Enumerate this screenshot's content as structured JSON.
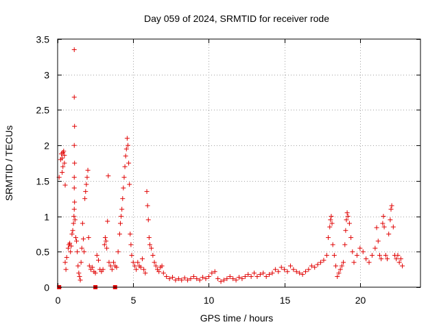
{
  "colors": {
    "points": "#e00000",
    "grid": "#a0a0a0",
    "frame": "#000000"
  },
  "chart_data": {
    "type": "scatter",
    "title": "Day 059 of 2024, SRMTID for receiver rode",
    "xlabel": "GPS time / hours",
    "ylabel": "SRMTID / TECUs",
    "xlim": [
      0,
      24
    ],
    "ylim": [
      0,
      3.5
    ],
    "xticks": [
      0,
      5,
      10,
      15,
      20
    ],
    "xtick_labels": [
      "0",
      "5",
      "10",
      "15",
      "20"
    ],
    "yticks": [
      0,
      0.5,
      1,
      1.5,
      2,
      2.5,
      3,
      3.5
    ],
    "ytick_labels": [
      "0",
      "0.5",
      "1",
      "1.5",
      "2",
      "2.5",
      "3",
      "3.5"
    ],
    "grid": true,
    "marker": "plus",
    "series": [
      {
        "name": "SRMTID",
        "points": [
          [
            0.1,
            1.55
          ],
          [
            0.2,
            1.8
          ],
          [
            0.25,
            1.88
          ],
          [
            0.3,
            1.82
          ],
          [
            0.35,
            1.9
          ],
          [
            0.4,
            1.92
          ],
          [
            0.45,
            1.86
          ],
          [
            0.3,
            1.62
          ],
          [
            0.35,
            1.7
          ],
          [
            0.45,
            1.75
          ],
          [
            0.5,
            1.44
          ],
          [
            0.5,
            0.35
          ],
          [
            0.55,
            0.25
          ],
          [
            0.6,
            0.42
          ],
          [
            0.7,
            0.55
          ],
          [
            0.75,
            0.6
          ],
          [
            0.8,
            0.62
          ],
          [
            0.85,
            0.5
          ],
          [
            0.9,
            0.58
          ],
          [
            0.95,
            0.75
          ],
          [
            1.0,
            0.8
          ],
          [
            1.05,
            0.9
          ],
          [
            1.08,
            1.0
          ],
          [
            1.1,
            1.1
          ],
          [
            1.12,
            1.2
          ],
          [
            1.1,
            1.4
          ],
          [
            1.1,
            1.55
          ],
          [
            1.12,
            1.75
          ],
          [
            1.1,
            2.0
          ],
          [
            1.12,
            2.27
          ],
          [
            1.1,
            2.68
          ],
          [
            1.1,
            3.35
          ],
          [
            1.15,
            0.95
          ],
          [
            1.2,
            0.7
          ],
          [
            1.25,
            0.65
          ],
          [
            1.3,
            0.5
          ],
          [
            1.35,
            0.3
          ],
          [
            1.4,
            0.2
          ],
          [
            1.45,
            0.15
          ],
          [
            1.5,
            0.1
          ],
          [
            1.55,
            0.35
          ],
          [
            1.6,
            0.55
          ],
          [
            1.65,
            0.9
          ],
          [
            1.7,
            0.68
          ],
          [
            1.75,
            0.5
          ],
          [
            1.8,
            1.25
          ],
          [
            1.85,
            1.35
          ],
          [
            1.9,
            1.45
          ],
          [
            1.95,
            1.55
          ],
          [
            2.0,
            1.65
          ],
          [
            2.05,
            0.7
          ],
          [
            2.1,
            0.3
          ],
          [
            2.2,
            0.25
          ],
          [
            2.3,
            0.28
          ],
          [
            2.4,
            0.22
          ],
          [
            2.5,
            0.2
          ],
          [
            2.6,
            0.45
          ],
          [
            2.7,
            0.38
          ],
          [
            2.8,
            0.25
          ],
          [
            2.9,
            0.22
          ],
          [
            3.0,
            0.25
          ],
          [
            3.1,
            0.6
          ],
          [
            3.15,
            0.7
          ],
          [
            3.2,
            0.65
          ],
          [
            3.25,
            0.55
          ],
          [
            3.3,
            0.93
          ],
          [
            3.35,
            1.57
          ],
          [
            3.4,
            0.35
          ],
          [
            3.5,
            0.3
          ],
          [
            3.6,
            0.25
          ],
          [
            3.7,
            0.35
          ],
          [
            3.8,
            0.3
          ],
          [
            3.9,
            0.28
          ],
          [
            4.0,
            0.5
          ],
          [
            4.1,
            0.75
          ],
          [
            4.15,
            0.9
          ],
          [
            4.2,
            1.0
          ],
          [
            4.25,
            1.1
          ],
          [
            4.3,
            1.25
          ],
          [
            4.35,
            1.4
          ],
          [
            4.4,
            1.55
          ],
          [
            4.45,
            1.7
          ],
          [
            4.5,
            1.85
          ],
          [
            4.55,
            1.95
          ],
          [
            4.6,
            2.1
          ],
          [
            4.65,
            2.0
          ],
          [
            4.7,
            1.75
          ],
          [
            4.75,
            1.45
          ],
          [
            4.8,
            0.75
          ],
          [
            4.85,
            0.6
          ],
          [
            4.9,
            0.45
          ],
          [
            5.0,
            0.35
          ],
          [
            5.1,
            0.3
          ],
          [
            5.2,
            0.25
          ],
          [
            5.3,
            0.35
          ],
          [
            5.4,
            0.3
          ],
          [
            5.5,
            0.28
          ],
          [
            5.6,
            0.4
          ],
          [
            5.7,
            0.25
          ],
          [
            5.8,
            0.2
          ],
          [
            5.9,
            1.35
          ],
          [
            5.95,
            1.15
          ],
          [
            6.0,
            0.95
          ],
          [
            6.05,
            0.7
          ],
          [
            6.1,
            0.6
          ],
          [
            6.2,
            0.55
          ],
          [
            6.3,
            0.45
          ],
          [
            6.4,
            0.35
          ],
          [
            6.5,
            0.3
          ],
          [
            6.6,
            0.25
          ],
          [
            6.7,
            0.22
          ],
          [
            6.8,
            0.28
          ],
          [
            6.9,
            0.3
          ],
          [
            7.0,
            0.2
          ],
          [
            7.2,
            0.15
          ],
          [
            7.4,
            0.12
          ],
          [
            7.6,
            0.14
          ],
          [
            7.8,
            0.1
          ],
          [
            8.0,
            0.12
          ],
          [
            8.2,
            0.1
          ],
          [
            8.4,
            0.13
          ],
          [
            8.6,
            0.1
          ],
          [
            8.8,
            0.12
          ],
          [
            9.0,
            0.15
          ],
          [
            9.2,
            0.12
          ],
          [
            9.4,
            0.1
          ],
          [
            9.6,
            0.14
          ],
          [
            9.8,
            0.12
          ],
          [
            10.0,
            0.15
          ],
          [
            10.2,
            0.2
          ],
          [
            10.4,
            0.22
          ],
          [
            10.6,
            0.12
          ],
          [
            10.8,
            0.08
          ],
          [
            11.0,
            0.1
          ],
          [
            11.2,
            0.12
          ],
          [
            11.4,
            0.15
          ],
          [
            11.6,
            0.12
          ],
          [
            11.8,
            0.1
          ],
          [
            12.0,
            0.14
          ],
          [
            12.2,
            0.12
          ],
          [
            12.4,
            0.15
          ],
          [
            12.6,
            0.18
          ],
          [
            12.8,
            0.15
          ],
          [
            13.0,
            0.2
          ],
          [
            13.2,
            0.15
          ],
          [
            13.4,
            0.18
          ],
          [
            13.6,
            0.2
          ],
          [
            13.8,
            0.15
          ],
          [
            14.0,
            0.18
          ],
          [
            14.2,
            0.2
          ],
          [
            14.4,
            0.25
          ],
          [
            14.6,
            0.22
          ],
          [
            14.8,
            0.28
          ],
          [
            15.0,
            0.25
          ],
          [
            15.2,
            0.22
          ],
          [
            15.4,
            0.3
          ],
          [
            15.6,
            0.25
          ],
          [
            15.8,
            0.22
          ],
          [
            16.0,
            0.2
          ],
          [
            16.2,
            0.18
          ],
          [
            16.4,
            0.22
          ],
          [
            16.6,
            0.25
          ],
          [
            16.8,
            0.3
          ],
          [
            17.0,
            0.28
          ],
          [
            17.2,
            0.32
          ],
          [
            17.4,
            0.35
          ],
          [
            17.6,
            0.38
          ],
          [
            17.8,
            0.45
          ],
          [
            17.9,
            0.7
          ],
          [
            18.0,
            0.85
          ],
          [
            18.05,
            0.95
          ],
          [
            18.1,
            1.0
          ],
          [
            18.15,
            0.9
          ],
          [
            18.2,
            0.6
          ],
          [
            18.3,
            0.45
          ],
          [
            18.4,
            0.3
          ],
          [
            18.5,
            0.15
          ],
          [
            18.6,
            0.2
          ],
          [
            18.7,
            0.25
          ],
          [
            18.8,
            0.3
          ],
          [
            18.9,
            0.35
          ],
          [
            19.0,
            0.6
          ],
          [
            19.05,
            0.8
          ],
          [
            19.1,
            0.95
          ],
          [
            19.15,
            1.05
          ],
          [
            19.2,
            1.0
          ],
          [
            19.3,
            0.9
          ],
          [
            19.4,
            0.7
          ],
          [
            19.5,
            0.5
          ],
          [
            19.6,
            0.35
          ],
          [
            19.8,
            0.45
          ],
          [
            20.0,
            0.55
          ],
          [
            20.2,
            0.5
          ],
          [
            20.4,
            0.4
          ],
          [
            20.6,
            0.35
          ],
          [
            20.8,
            0.45
          ],
          [
            21.0,
            0.55
          ],
          [
            21.1,
            0.84
          ],
          [
            21.2,
            0.65
          ],
          [
            21.3,
            0.45
          ],
          [
            21.4,
            0.4
          ],
          [
            21.5,
            0.9
          ],
          [
            21.55,
            1.0
          ],
          [
            21.6,
            0.85
          ],
          [
            21.7,
            0.45
          ],
          [
            21.8,
            0.4
          ],
          [
            21.9,
            0.75
          ],
          [
            22.0,
            0.95
          ],
          [
            22.05,
            1.1
          ],
          [
            22.1,
            1.15
          ],
          [
            22.2,
            0.85
          ],
          [
            22.3,
            0.45
          ],
          [
            22.4,
            0.4
          ],
          [
            22.5,
            0.45
          ],
          [
            22.6,
            0.35
          ],
          [
            22.7,
            0.4
          ],
          [
            22.8,
            0.3
          ]
        ],
        "squares": [
          [
            0.1,
            0.0
          ],
          [
            2.5,
            0.0
          ],
          [
            3.8,
            0.0
          ]
        ]
      }
    ]
  }
}
